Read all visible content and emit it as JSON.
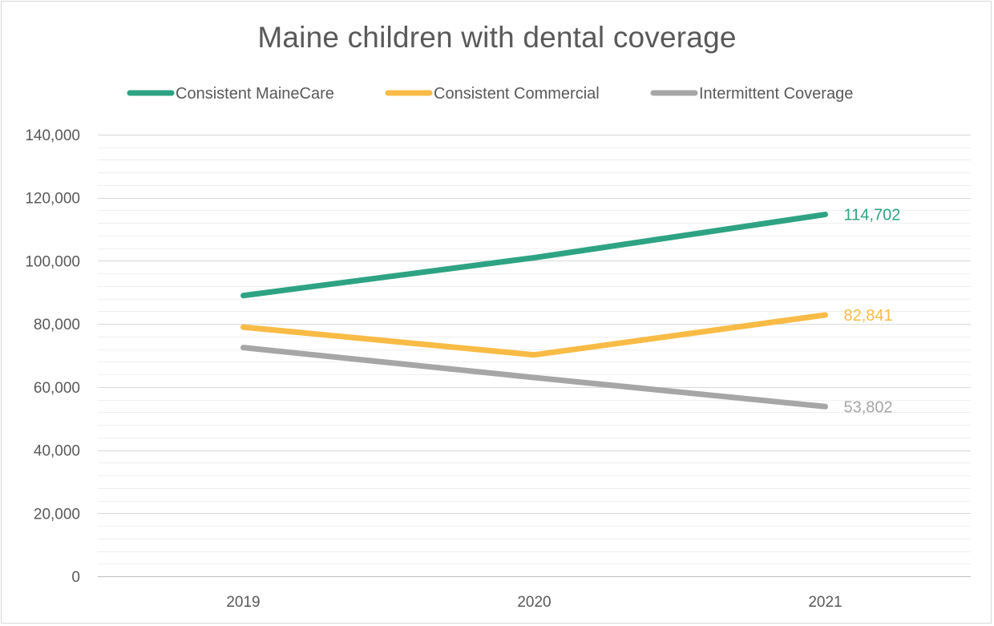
{
  "chart_data": {
    "type": "line",
    "title": "Maine children with dental coverage",
    "xlabel": "",
    "ylabel": "",
    "categories": [
      "2019",
      "2020",
      "2021"
    ],
    "ylim": [
      0,
      140000
    ],
    "y_ticks": [
      0,
      20000,
      40000,
      60000,
      80000,
      100000,
      120000,
      140000
    ],
    "y_tick_labels": [
      "0",
      "20,000",
      "40,000",
      "60,000",
      "80,000",
      "100,000",
      "120,000",
      "140,000"
    ],
    "grid": true,
    "legend_position": "top",
    "series": [
      {
        "name": "Consistent MaineCare",
        "color": "#2ea383",
        "values": [
          89000,
          101000,
          114702
        ],
        "end_label": "114,702"
      },
      {
        "name": "Consistent Commercial",
        "color": "#f8bb45",
        "values": [
          79000,
          70200,
          82841
        ],
        "end_label": "82,841"
      },
      {
        "name": "Intermittent Coverage",
        "color": "#a6a6a6",
        "values": [
          72500,
          63000,
          53802
        ],
        "end_label": "53,802"
      }
    ]
  }
}
